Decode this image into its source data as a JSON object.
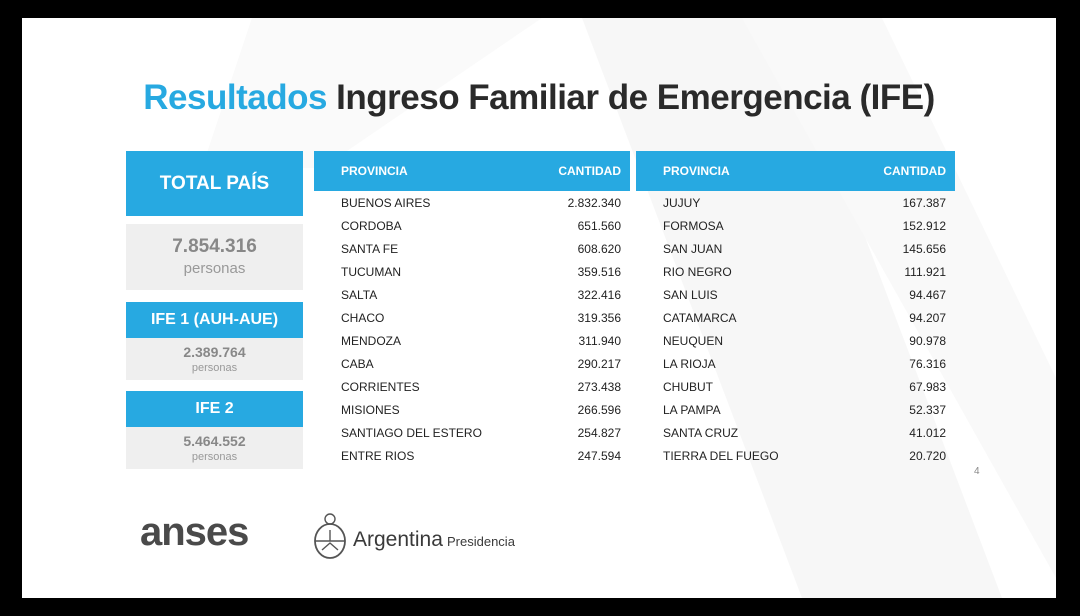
{
  "title": {
    "accent": "Resultados",
    "main": "Ingreso Familiar de Emergencia (IFE)"
  },
  "summary": {
    "total": {
      "label": "TOTAL PAÍS",
      "value": "7.854.316",
      "unit": "personas"
    },
    "ife1": {
      "label": "IFE 1 (AUH-AUE)",
      "value": "2.389.764",
      "unit": "personas"
    },
    "ife2": {
      "label": "IFE 2",
      "value": "5.464.552",
      "unit": "personas"
    }
  },
  "table_left": {
    "headers": [
      "PROVINCIA",
      "CANTIDAD"
    ],
    "rows": [
      [
        "BUENOS AIRES",
        "2.832.340"
      ],
      [
        "CORDOBA",
        "651.560"
      ],
      [
        "SANTA FE",
        "608.620"
      ],
      [
        "TUCUMAN",
        "359.516"
      ],
      [
        "SALTA",
        "322.416"
      ],
      [
        "CHACO",
        "319.356"
      ],
      [
        "MENDOZA",
        "311.940"
      ],
      [
        "CABA",
        "290.217"
      ],
      [
        "CORRIENTES",
        "273.438"
      ],
      [
        "MISIONES",
        "266.596"
      ],
      [
        "SANTIAGO DEL ESTERO",
        "254.827"
      ],
      [
        "ENTRE RIOS",
        "247.594"
      ]
    ]
  },
  "table_right": {
    "headers": [
      "PROVINCIA",
      "CANTIDAD"
    ],
    "rows": [
      [
        "JUJUY",
        "167.387"
      ],
      [
        "FORMOSA",
        "152.912"
      ],
      [
        "SAN JUAN",
        "145.656"
      ],
      [
        "RIO NEGRO",
        "111.921"
      ],
      [
        "SAN LUIS",
        "94.467"
      ],
      [
        "CATAMARCA",
        "94.207"
      ],
      [
        "NEUQUEN",
        "90.978"
      ],
      [
        "LA RIOJA",
        "76.316"
      ],
      [
        "CHUBUT",
        "67.983"
      ],
      [
        "LA PAMPA",
        "52.337"
      ],
      [
        "SANTA CRUZ",
        "41.012"
      ],
      [
        "TIERRA DEL FUEGO",
        "20.720"
      ]
    ]
  },
  "page_number": "4",
  "footer": {
    "anses": "anses",
    "argentina": "Argentina",
    "presidencia": "Presidencia"
  },
  "colors": {
    "accent": "#27A9E1",
    "box_bg": "#EFEFEF",
    "text": "#2a2a2a"
  }
}
